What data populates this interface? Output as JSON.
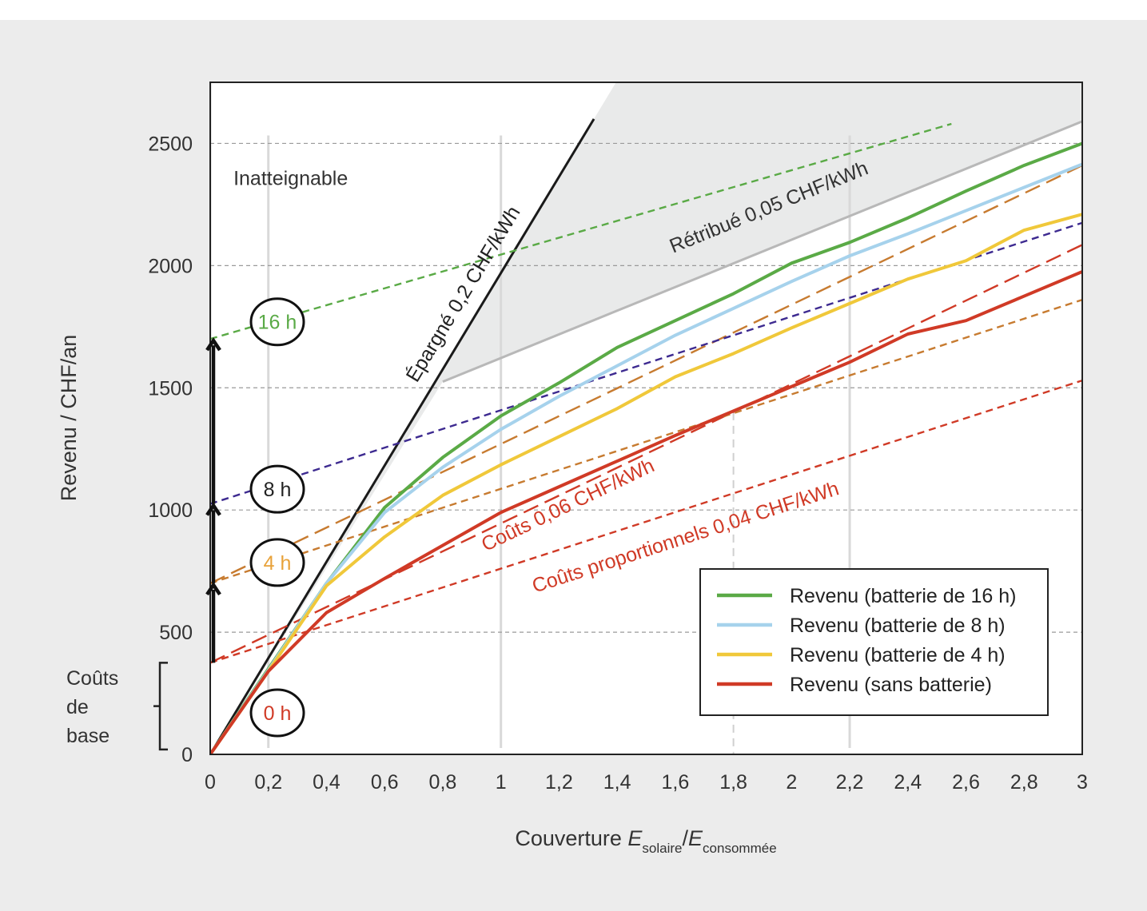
{
  "chart_data": {
    "type": "line",
    "xlabel": {
      "prefix": "Couverture ",
      "E1": "E",
      "sub1": "solaire",
      "slash": "/",
      "E2": "E",
      "sub2": "consommée"
    },
    "ylabel": "Revenu / CHF/an",
    "xlim": [
      0,
      3
    ],
    "ylim": [
      0,
      2750
    ],
    "x_ticks": [
      {
        "v": 0,
        "t": "0"
      },
      {
        "v": 0.2,
        "t": "0,2"
      },
      {
        "v": 0.4,
        "t": "0,4"
      },
      {
        "v": 0.6,
        "t": "0,6"
      },
      {
        "v": 0.8,
        "t": "0,8"
      },
      {
        "v": 1,
        "t": "1"
      },
      {
        "v": 1.2,
        "t": "1,2"
      },
      {
        "v": 1.4,
        "t": "1,4"
      },
      {
        "v": 1.6,
        "t": "1,6"
      },
      {
        "v": 1.8,
        "t": "1,8"
      },
      {
        "v": 2,
        "t": "2"
      },
      {
        "v": 2.2,
        "t": "2,2"
      },
      {
        "v": 2.4,
        "t": "2,4"
      },
      {
        "v": 2.6,
        "t": "2,6"
      },
      {
        "v": 2.8,
        "t": "2,8"
      },
      {
        "v": 3,
        "t": "3"
      }
    ],
    "y_ticks": [
      {
        "v": 0,
        "t": "0"
      },
      {
        "v": 500,
        "t": "500"
      },
      {
        "v": 1000,
        "t": "1000"
      },
      {
        "v": 1500,
        "t": "1500"
      },
      {
        "v": 2000,
        "t": "2000"
      },
      {
        "v": 2500,
        "t": "2500"
      }
    ],
    "series": [
      {
        "name": "Revenu (batterie de 16 h)",
        "color": "#5aaa46",
        "x": [
          0,
          0.2,
          0.4,
          0.6,
          0.8,
          1,
          1.2,
          1.4,
          1.6,
          1.8,
          2,
          2.2,
          2.4,
          2.6,
          2.8,
          3
        ],
        "y": [
          0,
          350,
          700,
          1010,
          1215,
          1385,
          1520,
          1665,
          1775,
          1885,
          2010,
          2095,
          2195,
          2305,
          2410,
          2500
        ]
      },
      {
        "name": "Revenu (batterie de 8 h)",
        "color": "#a6d2ec",
        "x": [
          0,
          0.2,
          0.4,
          0.6,
          0.8,
          1,
          1.2,
          1.4,
          1.6,
          1.8,
          2,
          2.2,
          2.4,
          2.6,
          2.8,
          3
        ],
        "y": [
          0,
          345,
          700,
          990,
          1175,
          1330,
          1465,
          1590,
          1715,
          1825,
          1935,
          2040,
          2130,
          2225,
          2320,
          2415
        ]
      },
      {
        "name": "Revenu (batterie de 4 h)",
        "color": "#f0c83a",
        "x": [
          0,
          0.2,
          0.4,
          0.6,
          0.8,
          1,
          1.2,
          1.4,
          1.6,
          1.8,
          2,
          2.2,
          2.4,
          2.6,
          2.8,
          3
        ],
        "y": [
          0,
          340,
          690,
          890,
          1060,
          1185,
          1300,
          1415,
          1545,
          1640,
          1745,
          1845,
          1945,
          2020,
          2145,
          2210
        ]
      },
      {
        "name": "Revenu (sans batterie)",
        "color": "#d03a26",
        "x": [
          0,
          0.2,
          0.4,
          0.6,
          0.8,
          1,
          1.2,
          1.4,
          1.6,
          1.8,
          2,
          2.2,
          2.4,
          2.6,
          2.8,
          3
        ],
        "y": [
          0,
          340,
          580,
          720,
          855,
          990,
          1095,
          1200,
          1305,
          1405,
          1505,
          1605,
          1720,
          1775,
          1875,
          1975
        ]
      }
    ],
    "reference_lines": [
      {
        "label": "Épargné 0,2 CHF/kWh",
        "color": "#1a1a1a",
        "style": "solid",
        "x": [
          0,
          1.32
        ],
        "y": [
          0,
          2600
        ]
      },
      {
        "label": "Rétribué 0,05 CHF/kWh",
        "color": "#b8b8b8",
        "style": "solid",
        "x": [
          0.8,
          3
        ],
        "y": [
          1525,
          2590
        ]
      },
      {
        "label": "Coûts 0,06 CHF/kWh",
        "color": "#d03a26",
        "style": "longdash",
        "x": [
          0,
          3
        ],
        "y": [
          375,
          2085
        ]
      },
      {
        "label": "Coûts proportionnels 0,04 CHF/kWh",
        "color": "#d03a26",
        "style": "dash",
        "x": [
          0,
          3
        ],
        "y": [
          375,
          1530
        ]
      },
      {
        "label": "",
        "color": "#c77b30",
        "style": "dash",
        "x": [
          0,
          3
        ],
        "y": [
          700,
          1860
        ]
      },
      {
        "label": "",
        "color": "#c77b30",
        "style": "longdash",
        "x": [
          0,
          3
        ],
        "y": [
          700,
          2410
        ]
      },
      {
        "label": "",
        "color": "#3d2a90",
        "style": "dash",
        "x": [
          0,
          3
        ],
        "y": [
          1025,
          2175
        ]
      },
      {
        "label": "",
        "color": "#5aaa46",
        "style": "dash",
        "x": [
          0,
          2.55
        ],
        "y": [
          1700,
          2580
        ]
      }
    ],
    "battery_markers": [
      {
        "label": "0 h",
        "y": 170,
        "color": "#d03a26"
      },
      {
        "label": "4 h",
        "y": 785,
        "color": "#e8a23a"
      },
      {
        "label": "8 h",
        "y": 1085,
        "color": "#222222"
      },
      {
        "label": "16 h",
        "y": 1770,
        "color": "#5aaa46"
      }
    ],
    "region_label": "Inatteignable",
    "base_costs_label": [
      "Coûts",
      "de",
      "base"
    ],
    "legend_position": "bottom-right"
  }
}
